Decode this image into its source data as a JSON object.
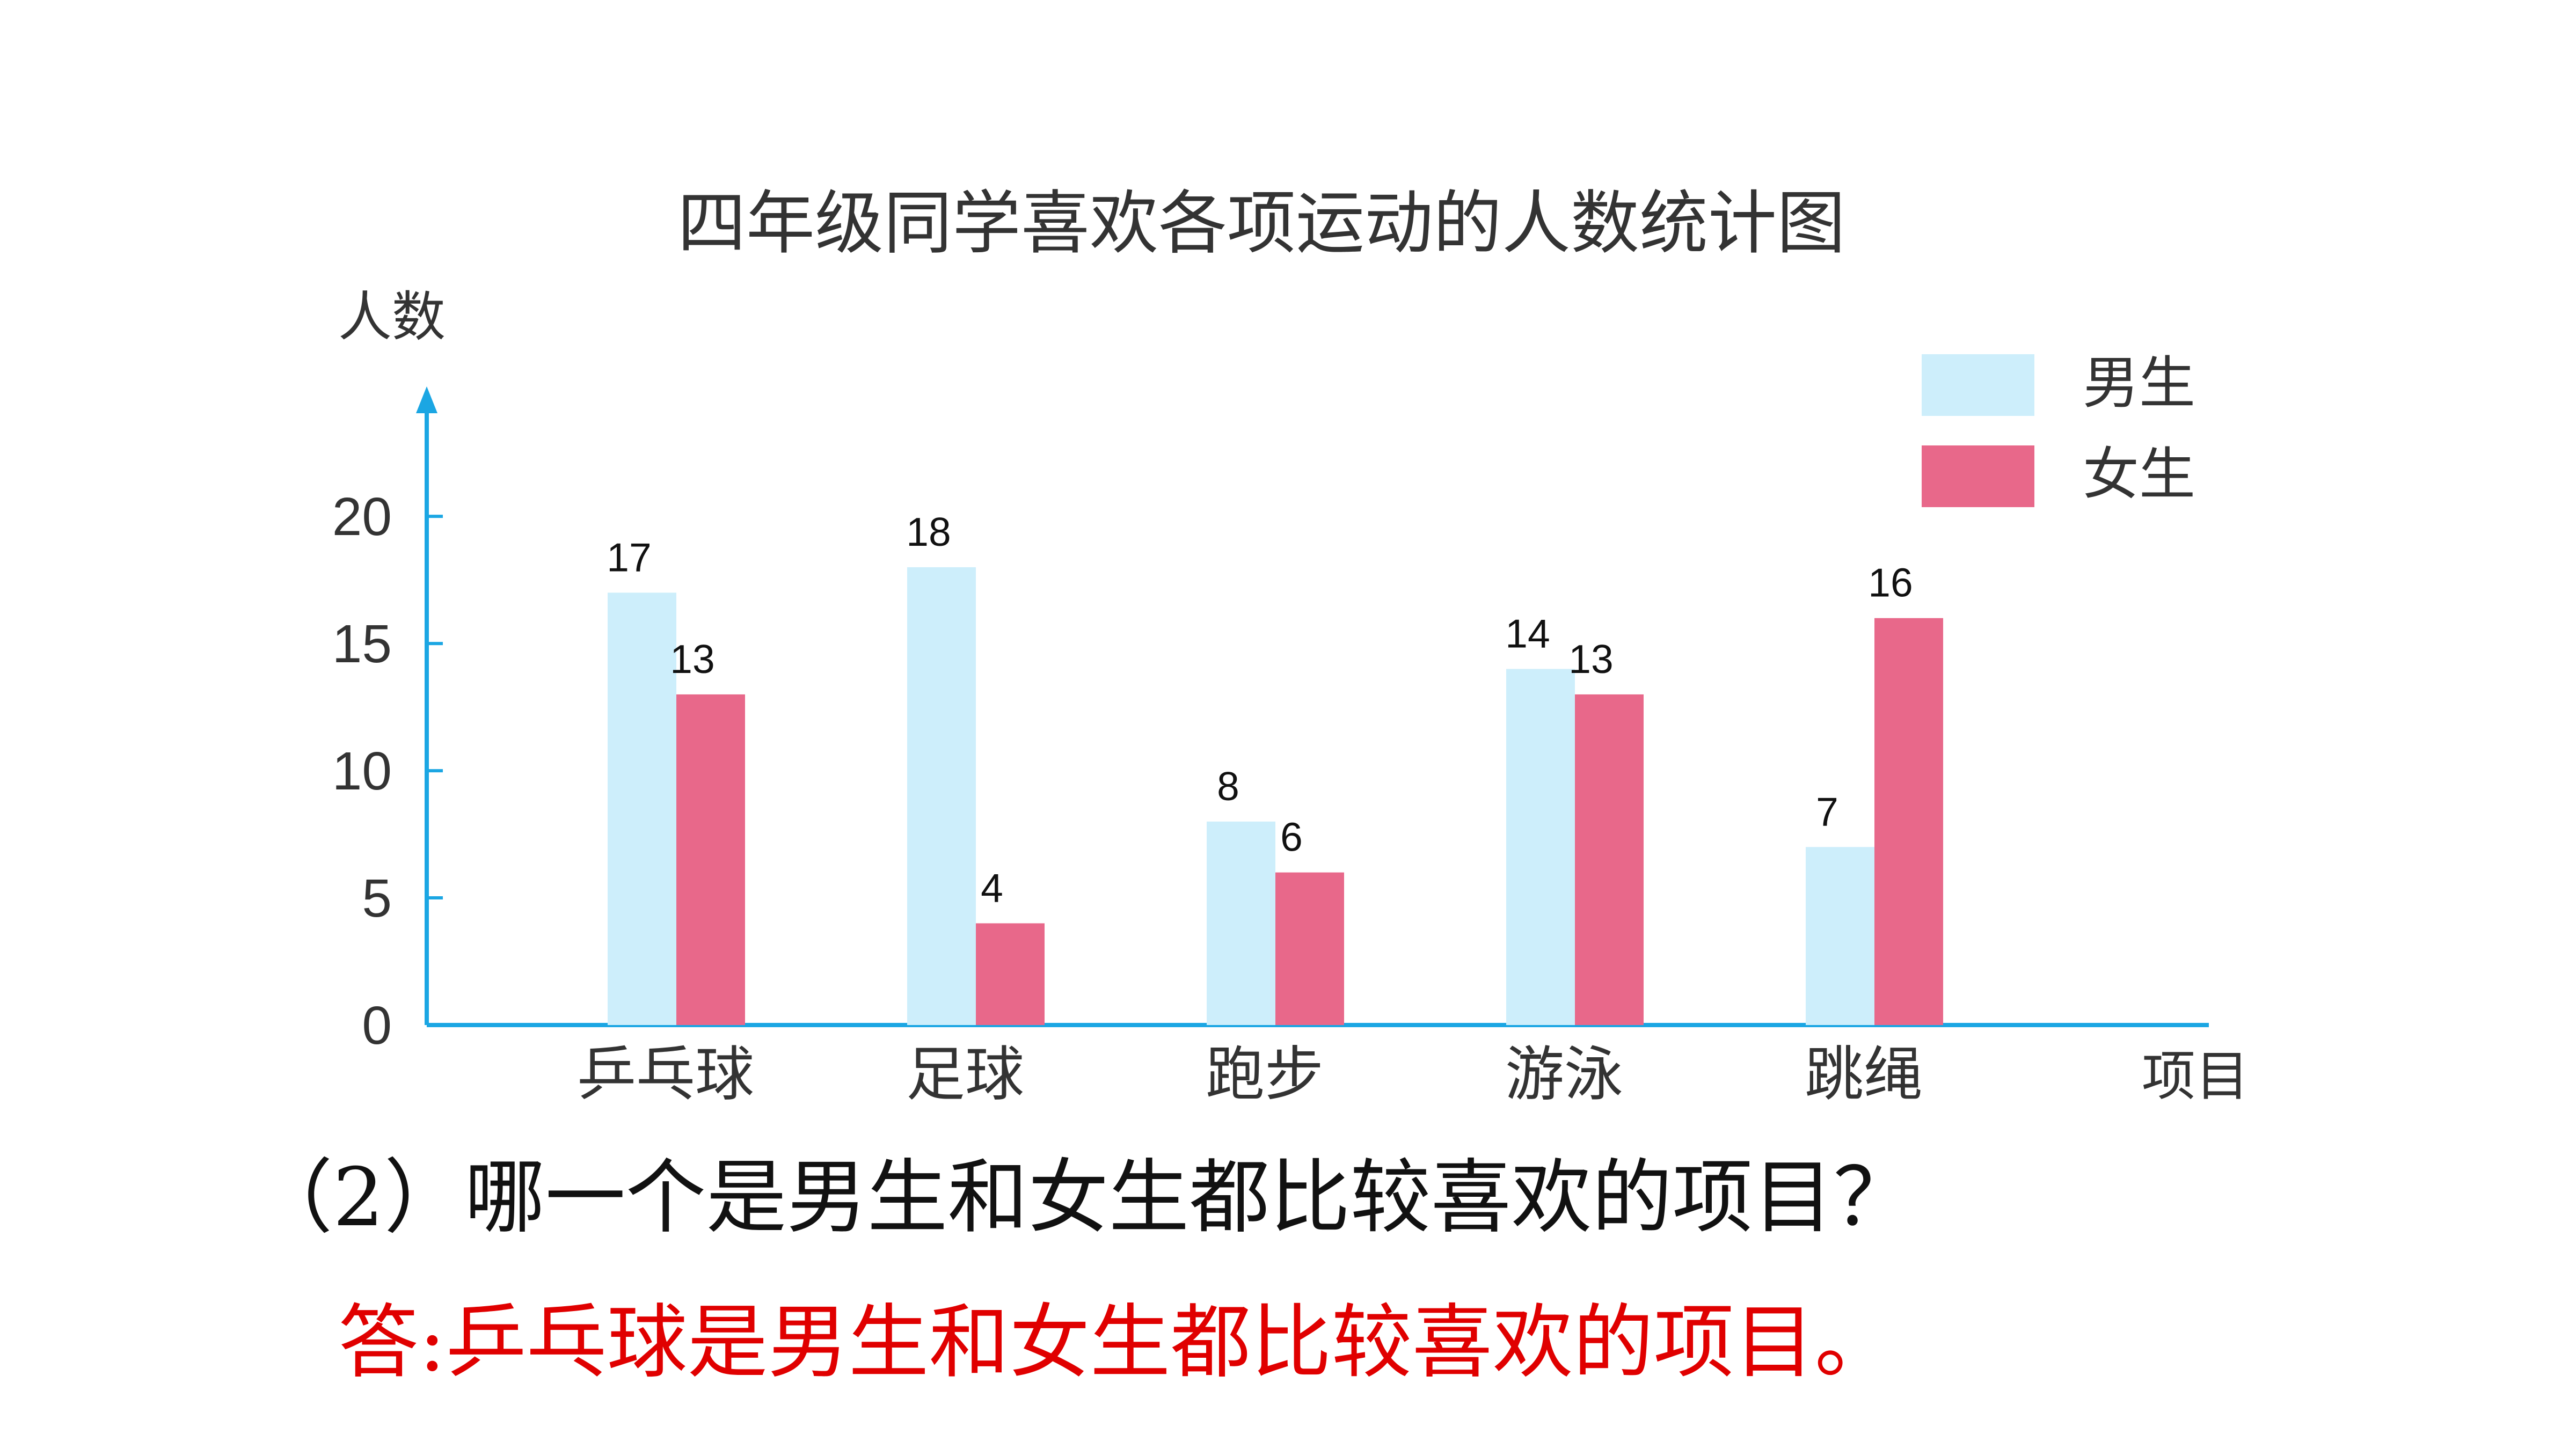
{
  "chart_data": {
    "type": "bar",
    "title": "四年级同学喜欢各项运动的人数统计图",
    "ylabel": "人数",
    "xlabel": "项目",
    "categories": [
      "乒乓球",
      "足球",
      "跑步",
      "游泳",
      "跳绳"
    ],
    "series": [
      {
        "name": "男生",
        "values": [
          17,
          18,
          8,
          14,
          7
        ],
        "color": "#cdeefb"
      },
      {
        "name": "女生",
        "values": [
          13,
          4,
          6,
          13,
          16
        ],
        "color": "#e8688a"
      }
    ],
    "yticks": [
      0,
      5,
      10,
      15,
      20
    ],
    "ylim": [
      0,
      23
    ],
    "legend": "top-right",
    "axis_color": "#1ba6e3",
    "grid": false
  },
  "question": "（2）哪一个是男生和女生都比较喜欢的项目？",
  "answer": "答:乒乓球是男生和女生都比较喜欢的项目。"
}
